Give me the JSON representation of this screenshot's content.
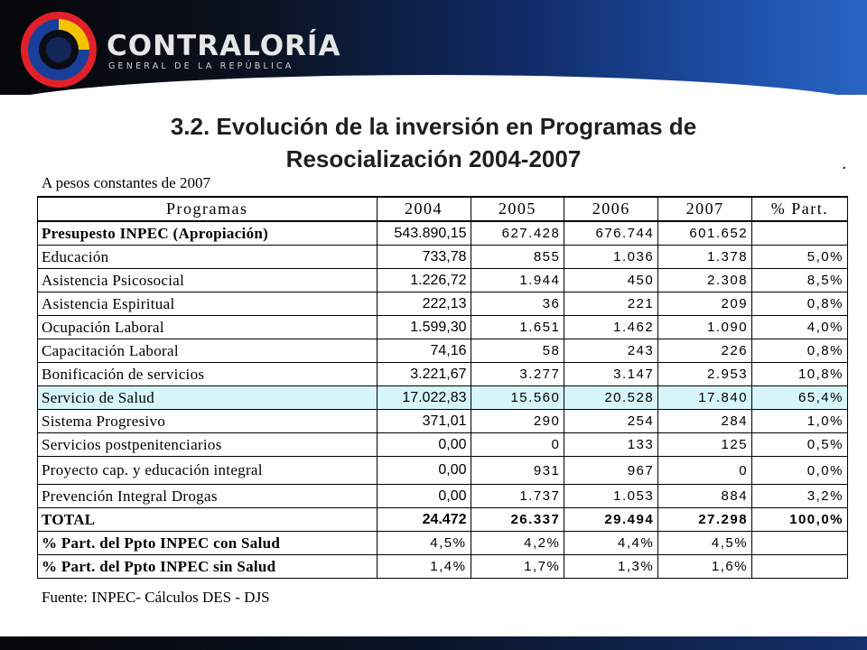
{
  "header": {
    "brand": "CONTRALORÍA",
    "brand_sub": "GENERAL DE LA REPÚBLICA",
    "logo_colors": {
      "ring_outer": "#e2202a",
      "ring_mid": "#f4c400",
      "ring_inner": "#1a3f9a"
    }
  },
  "slide": {
    "title_line1": "3.2. Evolución de la inversión en Programas de",
    "title_line2": "Resocialización 2004-2007",
    "dot": "."
  },
  "table": {
    "units": "A pesos constantes de 2007",
    "columns": [
      "Programas",
      "2004",
      "2005",
      "2006",
      "2007",
      "% Part."
    ],
    "rows": [
      {
        "name": "Presupesto INPEC (Apropiación)",
        "v2004": "543.890,15",
        "v2005": "627.428",
        "v2006": "676.744",
        "v2007": "601.652",
        "part": ""
      },
      {
        "name": "Educación",
        "v2004": "733,78",
        "v2005": "855",
        "v2006": "1.036",
        "v2007": "1.378",
        "part": "5,0%"
      },
      {
        "name": "Asistencia Psicosocial",
        "v2004": "1.226,72",
        "v2005": "1.944",
        "v2006": "450",
        "v2007": "2.308",
        "part": "8,5%"
      },
      {
        "name": "Asistencia Espiritual",
        "v2004": "222,13",
        "v2005": "36",
        "v2006": "221",
        "v2007": "209",
        "part": "0,8%"
      },
      {
        "name": "Ocupación Laboral",
        "v2004": "1.599,30",
        "v2005": "1.651",
        "v2006": "1.462",
        "v2007": "1.090",
        "part": "4,0%"
      },
      {
        "name": "Capacitación Laboral",
        "v2004": "74,16",
        "v2005": "58",
        "v2006": "243",
        "v2007": "226",
        "part": "0,8%"
      },
      {
        "name": "Bonificación de servicios",
        "v2004": "3.221,67",
        "v2005": "3.277",
        "v2006": "3.147",
        "v2007": "2.953",
        "part": "10,8%"
      },
      {
        "name": "Servicio de Salud",
        "v2004": "17.022,83",
        "v2005": "15.560",
        "v2006": "20.528",
        "v2007": "17.840",
        "part": "65,4%"
      },
      {
        "name": "Sistema Progresivo",
        "v2004": "371,01",
        "v2005": "290",
        "v2006": "254",
        "v2007": "284",
        "part": "1,0%"
      },
      {
        "name": "Servicios postpenitenciarios",
        "v2004": "0,00",
        "v2005": "0",
        "v2006": "133",
        "v2007": "125",
        "part": "0,5%"
      },
      {
        "name": "Proyecto cap. y educación integral",
        "v2004": "0,00",
        "v2005": "931",
        "v2006": "967",
        "v2007": "0",
        "part": "0,0%"
      },
      {
        "name": "Prevención Integral Drogas",
        "v2004": "0,00",
        "v2005": "1.737",
        "v2006": "1.053",
        "v2007": "884",
        "part": "3,2%"
      },
      {
        "name": "TOTAL",
        "v2004": "24.472",
        "v2005": "26.337",
        "v2006": "29.494",
        "v2007": "27.298",
        "part": "100,0%"
      },
      {
        "name": "% Part. del Ppto INPEC con Salud",
        "v2004": "4,5%",
        "v2005": "4,2%",
        "v2006": "4,4%",
        "v2007": "4,5%",
        "part": ""
      },
      {
        "name": "% Part. del Ppto INPEC sin Salud",
        "v2004": "1,4%",
        "v2005": "1,7%",
        "v2006": "1,3%",
        "v2007": "1,6%",
        "part": ""
      }
    ],
    "source": "Fuente: INPEC- Cálculos DES - DJS",
    "highlight_color": "#d6f5fa"
  }
}
